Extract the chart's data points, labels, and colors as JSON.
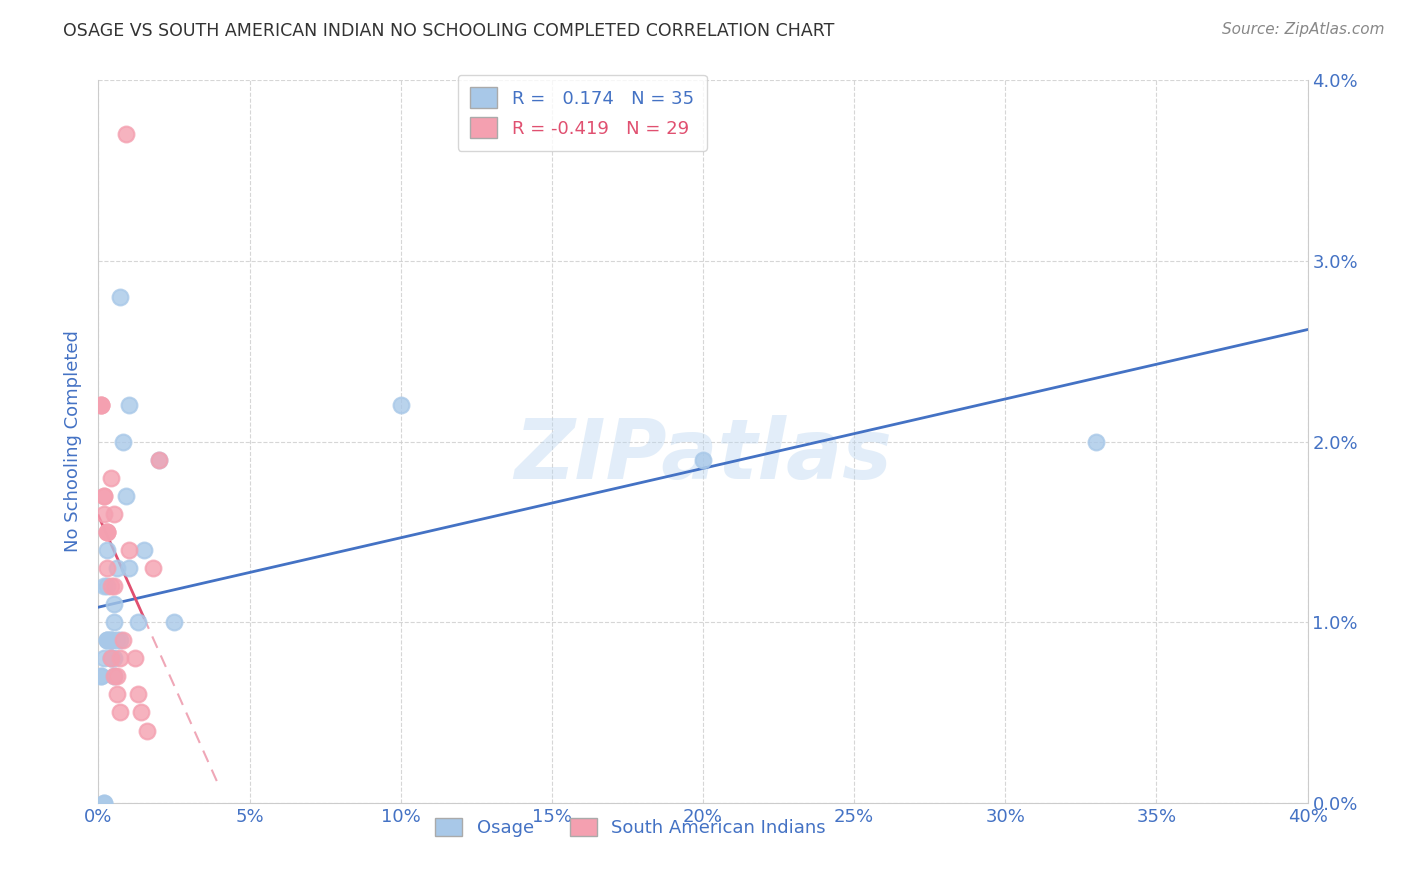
{
  "title": "OSAGE VS SOUTH AMERICAN INDIAN NO SCHOOLING COMPLETED CORRELATION CHART",
  "source": "Source: ZipAtlas.com",
  "ylabel": "No Schooling Completed",
  "xlim": [
    0.0,
    0.4
  ],
  "ylim": [
    0.0,
    0.04
  ],
  "xticks": [
    0.0,
    0.05,
    0.1,
    0.15,
    0.2,
    0.25,
    0.3,
    0.35,
    0.4
  ],
  "yticks": [
    0.0,
    0.01,
    0.02,
    0.03,
    0.04
  ],
  "osage_x": [
    0.001,
    0.001,
    0.002,
    0.002,
    0.002,
    0.003,
    0.003,
    0.003,
    0.003,
    0.004,
    0.004,
    0.004,
    0.004,
    0.005,
    0.005,
    0.005,
    0.006,
    0.006,
    0.007,
    0.007,
    0.008,
    0.009,
    0.01,
    0.01,
    0.013,
    0.015,
    0.02,
    0.025,
    0.1,
    0.2,
    0.33,
    0.002,
    0.003,
    0.004,
    0.005
  ],
  "osage_y": [
    0.007,
    0.007,
    0.0,
    0.0,
    0.008,
    0.009,
    0.009,
    0.012,
    0.009,
    0.009,
    0.009,
    0.008,
    0.008,
    0.011,
    0.008,
    0.01,
    0.013,
    0.009,
    0.009,
    0.028,
    0.02,
    0.017,
    0.013,
    0.022,
    0.01,
    0.014,
    0.019,
    0.01,
    0.022,
    0.019,
    0.02,
    0.012,
    0.014,
    0.009,
    0.007
  ],
  "sai_x": [
    0.001,
    0.001,
    0.001,
    0.002,
    0.002,
    0.002,
    0.003,
    0.003,
    0.003,
    0.003,
    0.004,
    0.004,
    0.004,
    0.005,
    0.005,
    0.005,
    0.006,
    0.006,
    0.007,
    0.007,
    0.008,
    0.009,
    0.01,
    0.012,
    0.013,
    0.014,
    0.016,
    0.018,
    0.02
  ],
  "sai_y": [
    0.022,
    0.022,
    0.022,
    0.017,
    0.017,
    0.016,
    0.015,
    0.015,
    0.015,
    0.013,
    0.018,
    0.012,
    0.008,
    0.016,
    0.012,
    0.007,
    0.006,
    0.007,
    0.008,
    0.005,
    0.009,
    0.037,
    0.014,
    0.008,
    0.006,
    0.005,
    0.004,
    0.013,
    0.019
  ],
  "osage_color": "#a8c8e8",
  "sai_color": "#f4a0b0",
  "osage_line_color": "#4472C4",
  "sai_line_color": "#E05070",
  "R_osage": 0.174,
  "N_osage": 35,
  "R_sai": -0.419,
  "N_sai": 29,
  "legend_labels": [
    "Osage",
    "South American Indians"
  ],
  "background_color": "#ffffff",
  "grid_color": "#cccccc",
  "title_color": "#333333",
  "axis_label_color": "#4472C4",
  "tick_label_color": "#4472C4"
}
